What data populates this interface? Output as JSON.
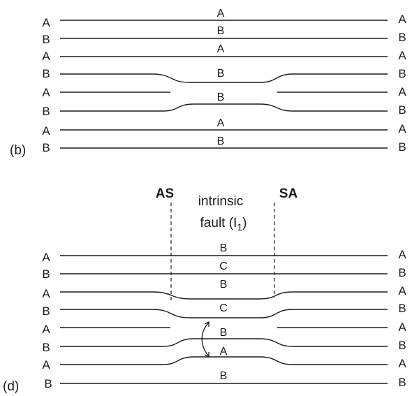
{
  "panel_b": {
    "label": "(b)",
    "rows": [
      {
        "left": "A",
        "mid": "A",
        "right": "A"
      },
      {
        "left": "B",
        "mid": "B",
        "right": "B"
      },
      {
        "left": "A",
        "mid": "A",
        "right": "A"
      },
      {
        "left": "B",
        "mid": "B",
        "right": "B"
      },
      {
        "left": "A",
        "mid": "B",
        "right": "A"
      },
      {
        "left": "B",
        "mid": "",
        "right": "B"
      },
      {
        "left": "A",
        "mid": "A",
        "right": "A"
      },
      {
        "left": "B",
        "mid": "B",
        "right": "B"
      }
    ]
  },
  "panel_d": {
    "label": "(d)",
    "left_partial": "AS",
    "right_partial": "SA",
    "fault_line1": "intrinsic",
    "fault_line2_prefix": "fault (I",
    "fault_subscript": "1",
    "fault_line2_suffix": ")",
    "rows": [
      {
        "left": "A",
        "mid": "B",
        "right": "A"
      },
      {
        "left": "B",
        "mid": "C",
        "right": "B"
      },
      {
        "left": "A",
        "mid": "B",
        "right": "A"
      },
      {
        "left": "B",
        "mid": "C",
        "right": "B"
      },
      {
        "left": "A",
        "mid": "B",
        "right": "A"
      },
      {
        "left": "B",
        "mid": "A",
        "right": "B"
      },
      {
        "left": "A",
        "mid": "B",
        "right": "A"
      },
      {
        "left": "B",
        "mid": "",
        "right": "B"
      }
    ]
  },
  "colors": {
    "ink": "#1a1a1a",
    "background": "#ffffff"
  }
}
